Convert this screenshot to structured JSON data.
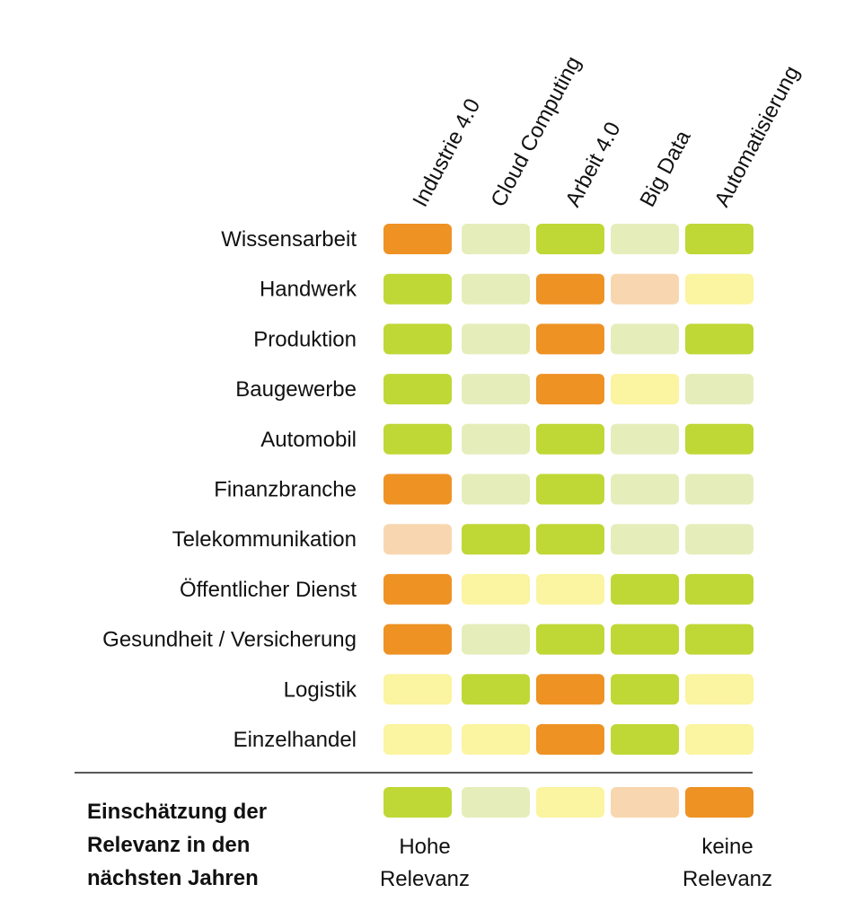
{
  "chart_data": {
    "type": "heatmap",
    "columns": [
      "Industrie 4.0",
      "Cloud Computing",
      "Arbeit 4.0",
      "Big Data",
      "Automatisierung"
    ],
    "rows": [
      "Wissensarbeit",
      "Handwerk",
      "Produktion",
      "Baugewerbe",
      "Automobil",
      "Finanzbranche",
      "Telekommunikation",
      "Öffentlicher Dienst",
      "Gesundheit / Versicherung",
      "Logistik",
      "Einzelhandel"
    ],
    "values": [
      [
        5,
        2,
        1,
        2,
        1
      ],
      [
        1,
        2,
        5,
        4,
        3
      ],
      [
        1,
        2,
        5,
        2,
        1
      ],
      [
        1,
        2,
        5,
        3,
        2
      ],
      [
        1,
        2,
        1,
        2,
        1
      ],
      [
        5,
        2,
        1,
        2,
        2
      ],
      [
        4,
        1,
        1,
        2,
        2
      ],
      [
        5,
        3,
        3,
        1,
        1
      ],
      [
        5,
        2,
        1,
        1,
        1
      ],
      [
        3,
        1,
        5,
        1,
        3
      ],
      [
        3,
        3,
        5,
        1,
        3
      ]
    ],
    "scale_colors": {
      "1": "#bfd836",
      "2": "#e5eebb",
      "3": "#fbf4a0",
      "4": "#f8d7b0",
      "5": "#ee9224"
    },
    "legend": {
      "title_lines": [
        "Einschätzung der",
        "Relevanz in den",
        "nächsten Jahren"
      ],
      "levels": [
        1,
        2,
        3,
        4,
        5
      ],
      "high_label_lines": [
        "Hohe",
        "Relevanz"
      ],
      "low_label_lines": [
        "keine",
        "Relevanz"
      ]
    }
  }
}
